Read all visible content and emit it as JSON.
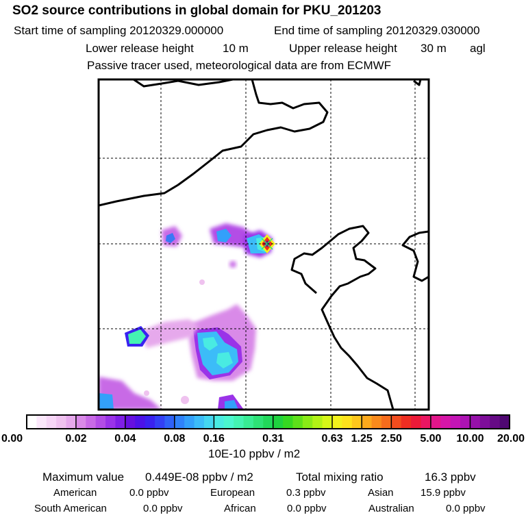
{
  "header": {
    "title": "SO2 source contributions in global domain for PKU_201203",
    "start_label": "Start time of sampling 20120329.000000",
    "end_label": "End time of sampling 20120329.030000",
    "lower_label": "Lower release height",
    "lower_value": "10 m",
    "upper_label": "Upper release height",
    "upper_value": "30 m",
    "upper_suffix": "agl",
    "tracer_note": "Passive tracer used, meteorological data are from ECMWF"
  },
  "chart_data": {
    "type": "heatmap",
    "title": "SO2 source contributions in global domain for PKU_201203",
    "units": "10E-10 ppbv / m2",
    "grid": true,
    "colorbar": {
      "tick_labels": [
        "0.00",
        "0.02",
        "0.04",
        "0.08",
        "0.16",
        "0.31",
        "0.63",
        "1.25",
        "2.50",
        "5.00",
        "10.00",
        "20.00"
      ],
      "colors": [
        "#ffffff",
        "#fbe8fb",
        "#f6d6f6",
        "#efc2ef",
        "#e6a9ec",
        "#d98ae8",
        "#c86ae6",
        "#b34de6",
        "#9a33e8",
        "#7f1fe6",
        "#6610e0",
        "#4d12e8",
        "#3a22f0",
        "#3340f5",
        "#2f62f8",
        "#2f82fa",
        "#33a0fa",
        "#3cbcf8",
        "#44d6f0",
        "#49ebe2",
        "#4bf6cf",
        "#44f3b2",
        "#39ec94",
        "#2ee276",
        "#22d85a",
        "#1fd23f",
        "#36d822",
        "#5ee01a",
        "#8aea17",
        "#b2f216",
        "#d6f618",
        "#f2f21c",
        "#fde21c",
        "#fdc61c",
        "#fca91c",
        "#f98a1c",
        "#f66c1c",
        "#f24d1e",
        "#ee2e22",
        "#ec1a38",
        "#ea1662",
        "#e2168a",
        "#d616a8",
        "#c415b6",
        "#ad13b4",
        "#9611aa",
        "#7e0e9a",
        "#660b86",
        "#4f0872"
      ],
      "groups": [
        5,
        5,
        5,
        4,
        6,
        6,
        3,
        3,
        4,
        4,
        4
      ]
    },
    "source_point": {
      "lon": 116.3,
      "lat": 39.9,
      "value": 0.449
    },
    "plumes": [
      {
        "region": "north-west small",
        "level": "0.04-0.16"
      },
      {
        "region": "north-central",
        "level": "0.04-0.16"
      },
      {
        "region": "source near Beijing",
        "level": "0.31-20.00"
      },
      {
        "region": "south-west",
        "level": "0.02-0.31"
      },
      {
        "region": "south-central",
        "level": "0.02-0.31"
      },
      {
        "region": "far south-west",
        "level": "0.02-0.16"
      }
    ]
  },
  "footer": {
    "max_label": "Maximum value",
    "max_value": "0.449E-08 ppbv / m2",
    "total_label": "Total mixing ratio",
    "total_value": "16.3 ppbv",
    "rows": [
      [
        {
          "name": "American",
          "value": "0.0 ppbv"
        },
        {
          "name": "European",
          "value": "0.3 ppbv"
        },
        {
          "name": "Asian",
          "value": "15.9 ppbv"
        }
      ],
      [
        {
          "name": "South American",
          "value": "0.0 ppbv"
        },
        {
          "name": "African",
          "value": "0.0 ppbv"
        },
        {
          "name": "Australian",
          "value": "0.0 ppbv"
        }
      ]
    ]
  }
}
